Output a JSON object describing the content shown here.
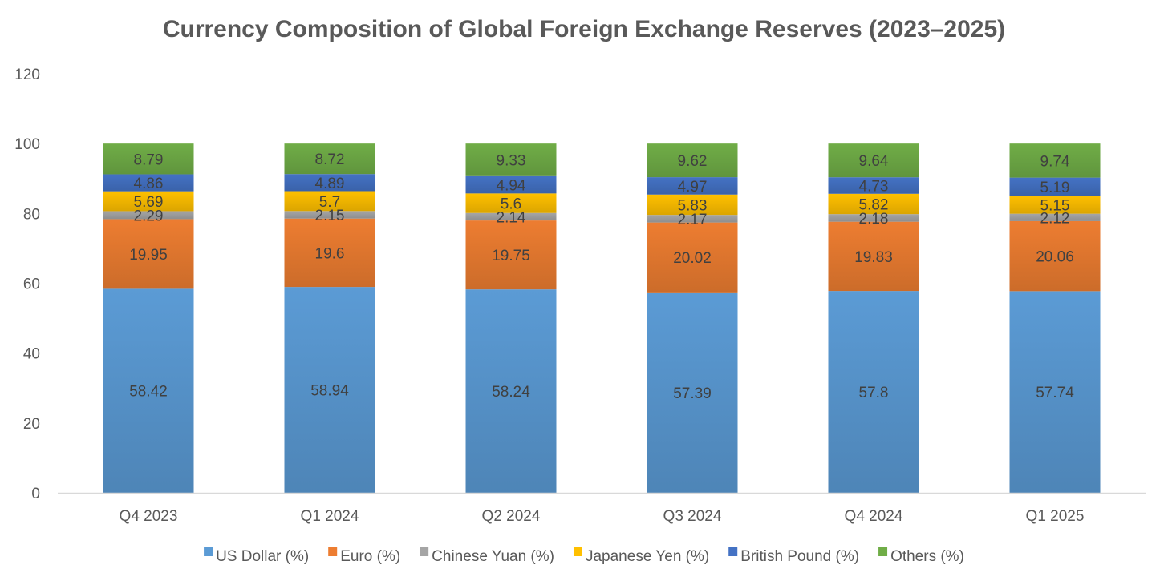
{
  "chart_data": {
    "type": "bar",
    "stacked": true,
    "title": "Currency Composition of Global Foreign Exchange Reserves (2023–2025)",
    "xlabel": "",
    "ylabel": "",
    "ylim": [
      0,
      120
    ],
    "yticks": [
      0,
      20,
      40,
      60,
      80,
      100,
      120
    ],
    "grid": false,
    "legend_position": "bottom",
    "categories": [
      "Q4 2023",
      "Q1 2024",
      "Q2 2024",
      "Q3 2024",
      "Q4 2024",
      "Q1 2025"
    ],
    "series": [
      {
        "name": "US Dollar (%)",
        "color": "#5b9bd5",
        "values": [
          58.42,
          58.94,
          58.24,
          57.39,
          57.8,
          57.74
        ]
      },
      {
        "name": "Euro (%)",
        "color": "#ed7d31",
        "values": [
          19.95,
          19.6,
          19.75,
          20.02,
          19.83,
          20.06
        ]
      },
      {
        "name": "Chinese Yuan (%)",
        "color": "#a5a5a5",
        "values": [
          2.29,
          2.15,
          2.14,
          2.17,
          2.18,
          2.12
        ]
      },
      {
        "name": "Japanese Yen (%)",
        "color": "#ffc000",
        "values": [
          5.69,
          5.7,
          5.6,
          5.83,
          5.82,
          5.15
        ]
      },
      {
        "name": "British Pound (%)",
        "color": "#4472c4",
        "values": [
          4.86,
          4.89,
          4.94,
          4.97,
          4.73,
          5.19
        ]
      },
      {
        "name": "Others (%)",
        "color": "#70ad47",
        "values": [
          8.79,
          8.72,
          9.33,
          9.62,
          9.64,
          9.74
        ]
      }
    ]
  }
}
